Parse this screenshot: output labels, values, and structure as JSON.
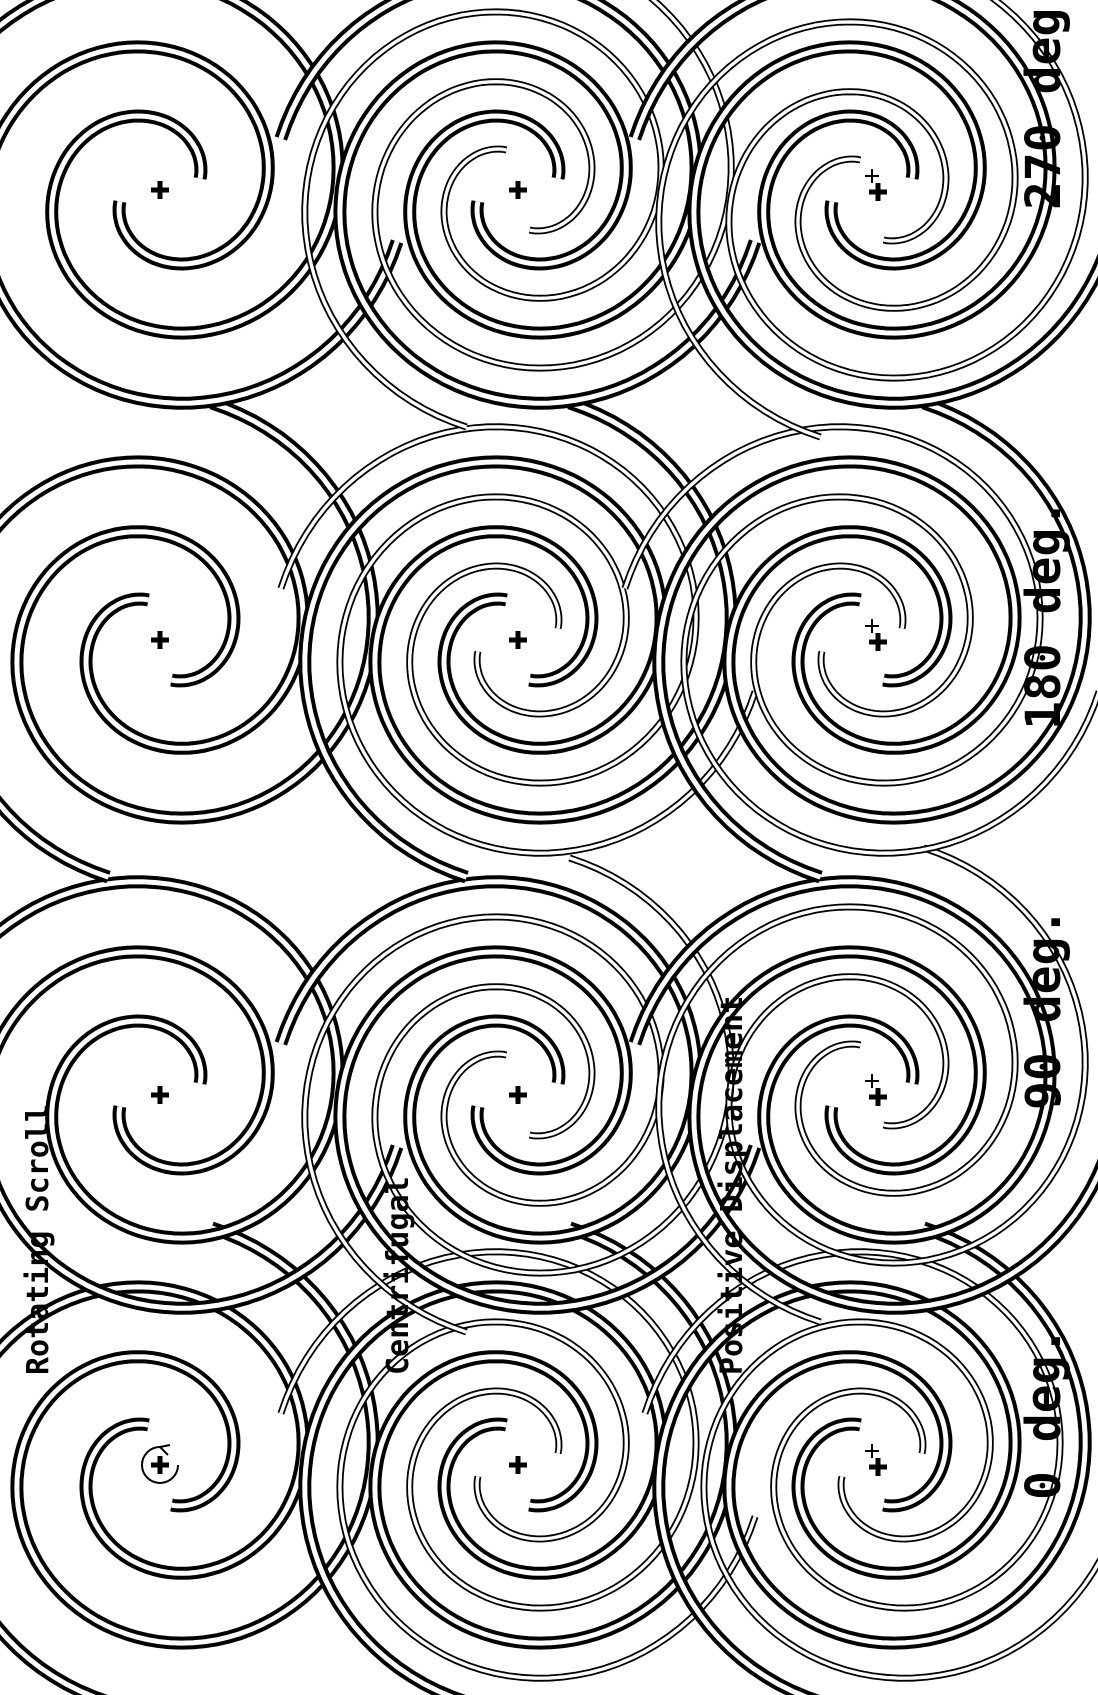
{
  "row_labels": {
    "rotating": "Rotating Scroll",
    "centrifugal": "Centrifugal",
    "positive": "Positive Displacement"
  },
  "angle_labels": {
    "a0": "0 deg.",
    "a90": "90 deg.",
    "a180": "180 deg.",
    "a270": "270 deg."
  },
  "rows": [
    {
      "key": "rotating",
      "scrolls": [
        "rotating-fixed"
      ]
    },
    {
      "key": "centrifugal",
      "scrolls": [
        "rotating-fixed",
        "orbiting-overlay"
      ]
    },
    {
      "key": "positive",
      "scrolls": [
        "rotating-fixed",
        "orbiting-overlay"
      ]
    }
  ],
  "columns": [
    0,
    90,
    180,
    270
  ],
  "colors": {
    "ink": "#000000",
    "paper": "#ffffff"
  }
}
